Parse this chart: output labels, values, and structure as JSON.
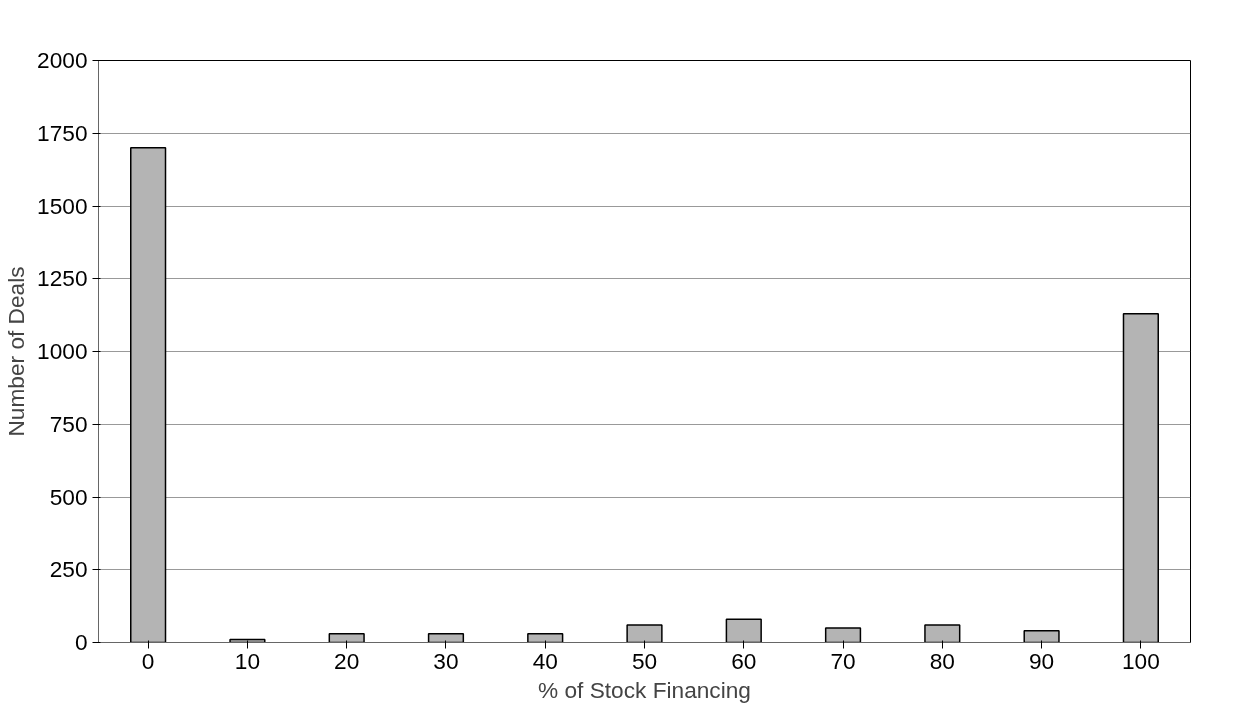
{
  "chart_data": {
    "type": "bar",
    "xlabel": "% of Stock Financing",
    "ylabel": "Number of Deals",
    "categories": [
      "0",
      "10",
      "20",
      "30",
      "40",
      "50",
      "60",
      "70",
      "80",
      "90",
      "100"
    ],
    "values": [
      1700,
      10,
      30,
      30,
      30,
      60,
      80,
      50,
      60,
      40,
      1130
    ],
    "color": "#b4b4b4",
    "ylim": [
      0,
      2000
    ],
    "yticks": [
      0,
      250,
      500,
      750,
      1000,
      1250,
      1500,
      1750,
      2000
    ],
    "grid": "y"
  }
}
